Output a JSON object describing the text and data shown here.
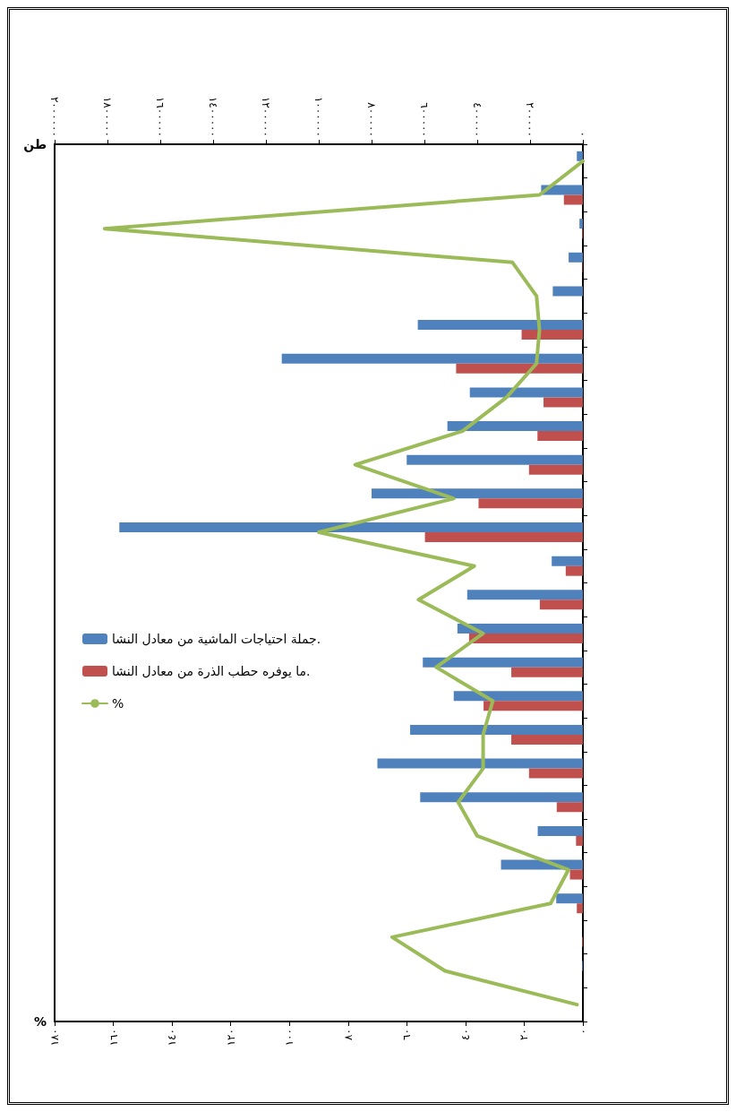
{
  "chart_data": {
    "type": "bar",
    "orientation": "horizontal",
    "xlabel": "%",
    "x2label": "طن",
    "categories": [
      null,
      null,
      null,
      null,
      null,
      null,
      null,
      null,
      null,
      null,
      null,
      null,
      null,
      null,
      null,
      null,
      null,
      null,
      null,
      null,
      null,
      null,
      null,
      null,
      null,
      null
    ],
    "series": [
      {
        "name": "جملة احتياجات الماشية من معادل النشا.",
        "color": "#4f81bd",
        "axis": "x2",
        "values": [
          23000,
          158000,
          13000,
          54000,
          114000,
          625000,
          1140000,
          428000,
          513000,
          667000,
          800000,
          1755000,
          118000,
          438000,
          475000,
          606000,
          489000,
          654000,
          778000,
          616000,
          171000,
          310000,
          101000,
          0,
          3000,
          0
        ]
      },
      {
        "name": "ما يوفره حطب الذرة من معادل النشا.",
        "color": "#c0504d",
        "axis": "x2",
        "values": [
          0,
          72000,
          3000,
          2000,
          null,
          232000,
          480000,
          149000,
          172000,
          204000,
          395000,
          598000,
          65000,
          163000,
          431000,
          271000,
          376000,
          271000,
          204000,
          99000,
          26000,
          49000,
          23000,
          3000,
          0,
          0
        ]
      },
      {
        "name": "%",
        "type": "line",
        "color": "#9bbb59",
        "values": [
          0,
          14.8,
          163,
          24,
          15.8,
          14.8,
          15.8,
          26,
          41,
          77.6,
          44,
          90,
          37,
          56,
          34,
          50,
          30.7,
          34,
          34,
          42.5,
          36,
          4.9,
          11,
          65,
          47,
          2
        ]
      }
    ],
    "xlim": [
      180,
      0
    ],
    "xticks": [
      {
        "value": 0,
        "label": "٠"
      },
      {
        "value": 20,
        "label": "٢٠"
      },
      {
        "value": 40,
        "label": "٤٠"
      },
      {
        "value": 60,
        "label": "٦٠"
      },
      {
        "value": 80,
        "label": "٨٠"
      },
      {
        "value": 100,
        "label": "١٠٠"
      },
      {
        "value": 120,
        "label": "١٢٠"
      },
      {
        "value": 140,
        "label": "١٤٠"
      },
      {
        "value": 160,
        "label": "١٦٠"
      },
      {
        "value": 180,
        "label": "١٨٠"
      }
    ],
    "x2lim": [
      2000000,
      0
    ],
    "x2ticks": [
      {
        "value": 0,
        "label": "٠"
      },
      {
        "value": 200000,
        "label": "٢٠٠٠٠٠"
      },
      {
        "value": 400000,
        "label": "٤٠٠٠٠٠"
      },
      {
        "value": 600000,
        "label": "٦٠٠٠٠٠"
      },
      {
        "value": 800000,
        "label": "٨٠٠٠٠٠"
      },
      {
        "value": 1000000,
        "label": "١٠٠٠٠٠٠"
      },
      {
        "value": 1200000,
        "label": "١٢٠٠٠٠٠"
      },
      {
        "value": 1400000,
        "label": "١٤٠٠٠٠٠"
      },
      {
        "value": 1600000,
        "label": "١٦٠٠٠٠٠"
      },
      {
        "value": 1800000,
        "label": "١٨٠٠٠٠٠"
      },
      {
        "value": 2000000,
        "label": "٢٠٠٠٠٠٠"
      }
    ],
    "grid": false,
    "legend": "left",
    "marker": "none",
    "line_style": "solid"
  }
}
